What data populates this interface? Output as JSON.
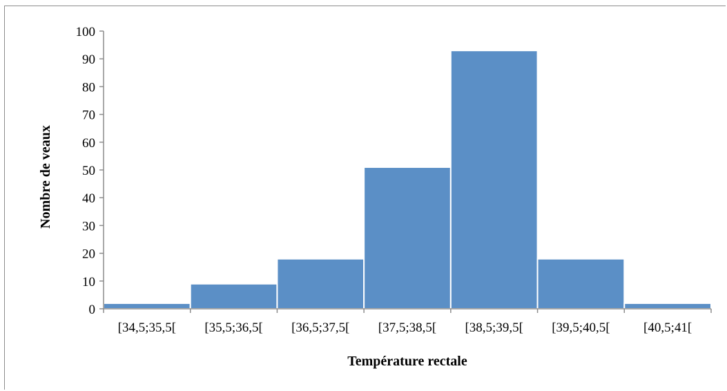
{
  "chart_data": {
    "type": "bar",
    "title": "",
    "xlabel": "Température rectale",
    "ylabel": "Nombre de veaux",
    "categories": [
      "[34,5;35,5[",
      "[35,5;36,5[",
      "[36,5;37,5[",
      "[37,5;38,5[",
      "[38,5;39,5[",
      "[39,5;40,5[",
      "[40,5;41["
    ],
    "values": [
      2,
      9,
      18,
      51,
      93,
      18,
      2
    ],
    "ylim": [
      0,
      100
    ],
    "yticks": [
      0,
      10,
      20,
      30,
      40,
      50,
      60,
      70,
      80,
      90,
      100
    ],
    "grid": false,
    "legend": "none",
    "bar_color": "#5b8fc6",
    "bar_edge_color": "#ffffff"
  }
}
